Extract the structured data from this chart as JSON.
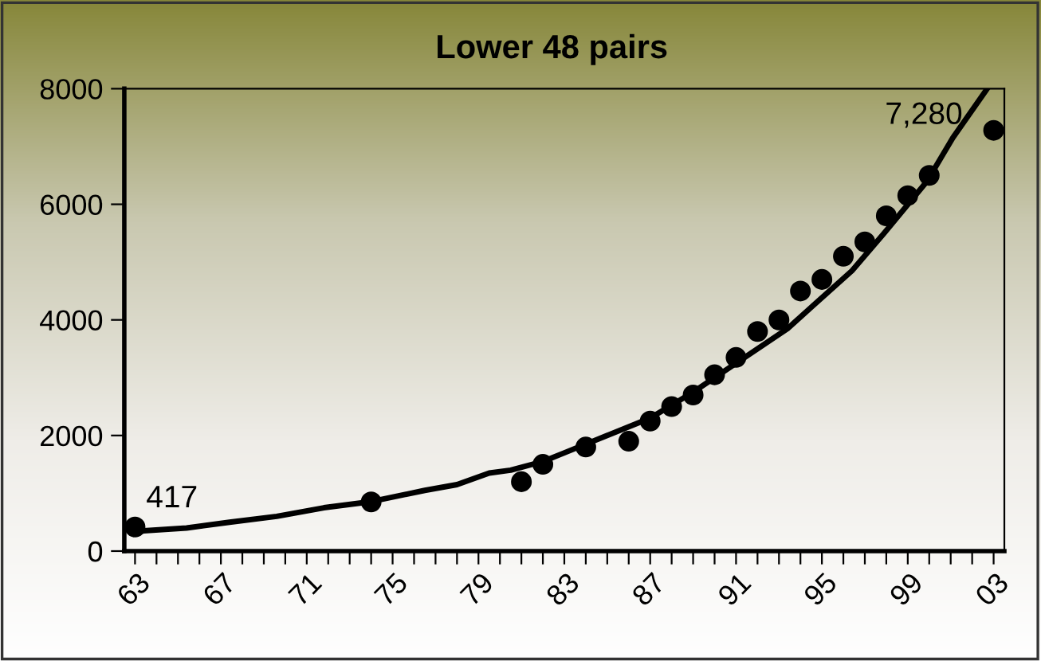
{
  "chart_data": {
    "type": "line",
    "title": "Lower 48 pairs",
    "x": [
      1963,
      1974,
      1981,
      1982,
      1984,
      1986,
      1987,
      1988,
      1989,
      1990,
      1991,
      1992,
      1993,
      1994,
      1995,
      1996,
      1997,
      1998,
      1999,
      2000,
      2003
    ],
    "xlim": [
      1962.5,
      2003.5
    ],
    "xticks": [
      {
        "value": 1963,
        "label": "63"
      },
      {
        "value": 1964,
        "label": null
      },
      {
        "value": 1965,
        "label": null
      },
      {
        "value": 1966,
        "label": null
      },
      {
        "value": 1967,
        "label": "67"
      },
      {
        "value": 1968,
        "label": null
      },
      {
        "value": 1969,
        "label": null
      },
      {
        "value": 1970,
        "label": null
      },
      {
        "value": 1971,
        "label": "71"
      },
      {
        "value": 1972,
        "label": null
      },
      {
        "value": 1973,
        "label": null
      },
      {
        "value": 1974,
        "label": null
      },
      {
        "value": 1975,
        "label": "75"
      },
      {
        "value": 1976,
        "label": null
      },
      {
        "value": 1977,
        "label": null
      },
      {
        "value": 1978,
        "label": null
      },
      {
        "value": 1979,
        "label": "79"
      },
      {
        "value": 1980,
        "label": null
      },
      {
        "value": 1981,
        "label": null
      },
      {
        "value": 1982,
        "label": null
      },
      {
        "value": 1983,
        "label": "83"
      },
      {
        "value": 1984,
        "label": null
      },
      {
        "value": 1985,
        "label": null
      },
      {
        "value": 1986,
        "label": null
      },
      {
        "value": 1987,
        "label": "87"
      },
      {
        "value": 1988,
        "label": null
      },
      {
        "value": 1989,
        "label": null
      },
      {
        "value": 1990,
        "label": null
      },
      {
        "value": 1991,
        "label": "91"
      },
      {
        "value": 1992,
        "label": null
      },
      {
        "value": 1993,
        "label": null
      },
      {
        "value": 1994,
        "label": null
      },
      {
        "value": 1995,
        "label": "95"
      },
      {
        "value": 1996,
        "label": null
      },
      {
        "value": 1997,
        "label": null
      },
      {
        "value": 1998,
        "label": null
      },
      {
        "value": 1999,
        "label": "99"
      },
      {
        "value": 2000,
        "label": null
      },
      {
        "value": 2001,
        "label": null
      },
      {
        "value": 2002,
        "label": null
      },
      {
        "value": 2003,
        "label": "03"
      }
    ],
    "ylim": [
      0,
      8000
    ],
    "yticks": [
      0,
      2000,
      4000,
      6000,
      8000
    ],
    "series": [
      {
        "type": "scatter",
        "color": "#000000",
        "marker": "circle",
        "values": [
          417,
          850,
          1200,
          1500,
          1800,
          1900,
          2250,
          2500,
          2700,
          3050,
          3350,
          3800,
          4000,
          4500,
          4700,
          5100,
          5350,
          5800,
          6150,
          6500,
          7280
        ],
        "value_labels": [
          "417",
          null,
          null,
          null,
          null,
          null,
          null,
          null,
          null,
          null,
          null,
          null,
          null,
          null,
          null,
          null,
          null,
          null,
          null,
          null,
          "7,280"
        ]
      },
      {
        "color": "#000000",
        "line_style": "solid",
        "x": [
          1963.0,
          1963.4,
          1965.4,
          1967.4,
          1969.6,
          1971.8,
          1973.9,
          1976.5,
          1978.0,
          1979.5,
          1980.5,
          1982.0,
          1983.0,
          1985.0,
          1987.0,
          1989.0,
          1991.0,
          1993.4,
          1996.4,
          1997.9,
          1999.9,
          2001.1,
          2002.7
        ],
        "values": [
          300,
          350,
          400,
          500,
          600,
          750,
          850,
          1050,
          1150,
          1350,
          1400,
          1550,
          1700,
          2000,
          2300,
          2750,
          3250,
          3850,
          4850,
          5500,
          6400,
          7150,
          8000
        ]
      }
    ]
  }
}
